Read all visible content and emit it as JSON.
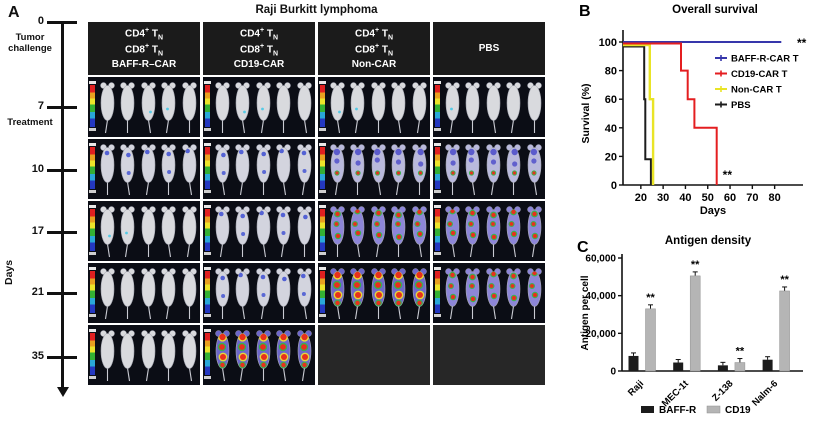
{
  "panel_a": {
    "label": "A",
    "title": "Raji Burkitt lymphoma",
    "timeline": {
      "axis_label": "Days",
      "marks": [
        {
          "day": "0",
          "note": "Tumor challenge"
        },
        {
          "day": "7",
          "note": "Treatment"
        },
        {
          "day": "10",
          "note": ""
        },
        {
          "day": "17",
          "note": ""
        },
        {
          "day": "21",
          "note": ""
        },
        {
          "day": "35",
          "note": ""
        }
      ]
    },
    "groups": [
      {
        "lines": [
          "CD4^+^ T~N~",
          "CD8^+^ T~N~",
          "BAFF-R–CAR"
        ]
      },
      {
        "lines": [
          "CD4^+^ T~N~",
          "CD8^+^ T~N~",
          "CD19-CAR"
        ]
      },
      {
        "lines": [
          "CD4^+^ T~N~",
          "CD8^+^ T~N~",
          "Non-CAR"
        ]
      },
      {
        "lines": [
          "PBS"
        ]
      }
    ],
    "mice_per_group": 5,
    "rows": [
      {
        "day": "7",
        "signals": [
          "specks",
          "specks",
          "specks",
          "specks"
        ]
      },
      {
        "day": "10",
        "signals": [
          "faint",
          "faint",
          "moderate",
          "moderate"
        ]
      },
      {
        "day": "17",
        "signals": [
          "specks",
          "faint",
          "heavy",
          "heavy"
        ]
      },
      {
        "day": "21",
        "signals": [
          "none",
          "faint",
          "extreme",
          "heavy"
        ]
      },
      {
        "day": "35",
        "signals": [
          "none",
          "extreme",
          "dead",
          "dead"
        ]
      }
    ]
  },
  "chart_data": [
    {
      "type": "line",
      "panel_label": "B",
      "title": "Overall survival",
      "xlabel": "Days",
      "ylabel": "Survival (%)",
      "xlim": [
        12,
        90
      ],
      "ylim": [
        0,
        105
      ],
      "xticks": [
        20,
        30,
        40,
        50,
        60,
        70,
        80
      ],
      "yticks": [
        0,
        20,
        40,
        60,
        80,
        100
      ],
      "grid": false,
      "legend_position": "right",
      "series": [
        {
          "name": "BAFF-R-CAR T",
          "color": "#3636ab",
          "steps": [
            [
              12,
              100
            ],
            [
              83,
              100
            ]
          ],
          "annotation": "**",
          "annotation_at": "end"
        },
        {
          "name": "CD19-CAR T",
          "color": "#e41e20",
          "steps": [
            [
              12,
              100
            ],
            [
              38,
              100
            ],
            [
              38,
              80
            ],
            [
              41,
              80
            ],
            [
              41,
              60
            ],
            [
              44,
              60
            ],
            [
              44,
              40
            ],
            [
              54,
              40
            ],
            [
              54,
              0
            ]
          ],
          "annotation": "**",
          "annotation_at": "end"
        },
        {
          "name": "Non-CAR T",
          "color": "#e9e426",
          "steps": [
            [
              12,
              100
            ],
            [
              24,
              100
            ],
            [
              24,
              60
            ],
            [
              25.5,
              60
            ],
            [
              25.5,
              0
            ]
          ],
          "annotation": ""
        },
        {
          "name": "PBS",
          "color": "#1c1c1c",
          "steps": [
            [
              12,
              100
            ],
            [
              21.5,
              100
            ],
            [
              21.5,
              60
            ],
            [
              22,
              60
            ],
            [
              22,
              18
            ],
            [
              24.5,
              18
            ],
            [
              24.5,
              0
            ]
          ],
          "annotation": ""
        }
      ]
    },
    {
      "type": "bar",
      "panel_label": "C",
      "title": "Antigen density",
      "xlabel": "",
      "ylabel": "Antigen per cell",
      "ylim": [
        0,
        60000
      ],
      "yticks": [
        0,
        20000,
        40000,
        60000
      ],
      "ytick_labels": [
        "0",
        "20,000",
        "40,000",
        "60,000"
      ],
      "categories": [
        "Raji",
        "MEC-1t",
        "Z-138",
        "Nalm-6"
      ],
      "legend_position": "bottom",
      "series": [
        {
          "name": "BAFF-R",
          "color": "#1c1c1c",
          "values": [
            8000,
            4500,
            3000,
            6000
          ]
        },
        {
          "name": "CD19",
          "color": "#b5b5b5",
          "values": [
            33000,
            50500,
            4500,
            42500
          ]
        }
      ],
      "sig_labels": [
        "**",
        "**",
        "**",
        "**"
      ]
    }
  ]
}
